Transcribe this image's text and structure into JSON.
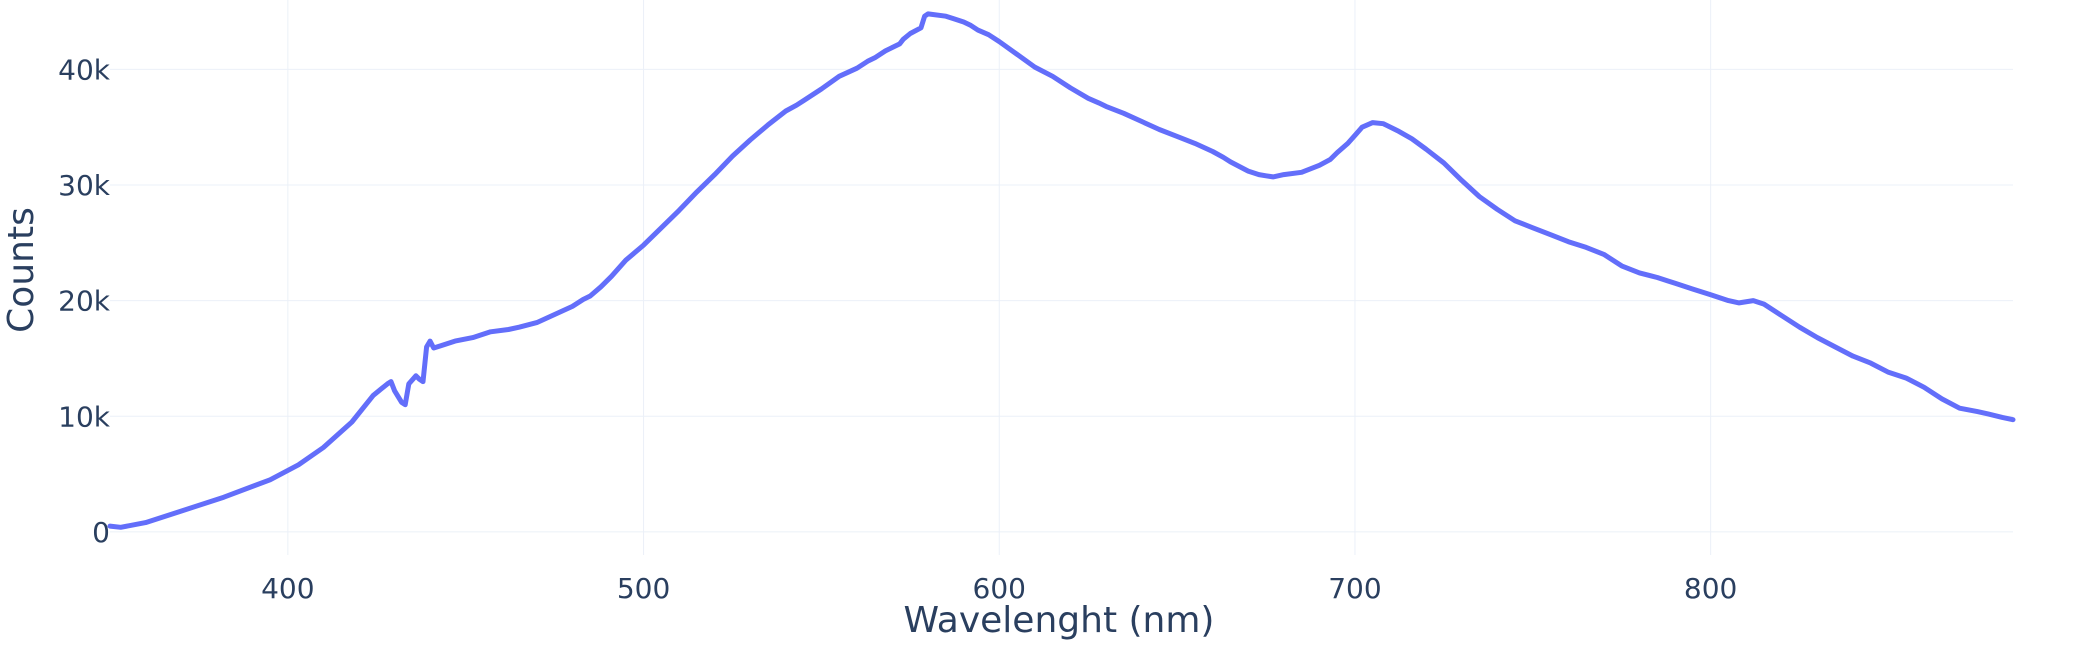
{
  "chart_data": {
    "type": "line",
    "xlabel": "Wavelenght (nm)",
    "ylabel": "Counts",
    "xlim": [
      350,
      885
    ],
    "ylim": [
      -2000,
      46000
    ],
    "xticks": [
      400,
      500,
      600,
      700,
      800
    ],
    "xtick_labels": [
      "400",
      "500",
      "600",
      "700",
      "800"
    ],
    "yticks": [
      0,
      10000,
      20000,
      30000,
      40000
    ],
    "ytick_labels": [
      "0",
      "10k",
      "20k",
      "30k",
      "40k"
    ],
    "grid": true,
    "legend": "none",
    "line_color": "#636efa",
    "series": [
      {
        "x": [
          350,
          353,
          360,
          370,
          382,
          395,
          403,
          410,
          418,
          424,
          428,
          429,
          430,
          432,
          433,
          434,
          436,
          437,
          438,
          439,
          440,
          441,
          443,
          447,
          452,
          457,
          462,
          465,
          470,
          475,
          480,
          483,
          485,
          488,
          491,
          495,
          500,
          505,
          510,
          515,
          520,
          525,
          530,
          535,
          540,
          543,
          545,
          550,
          555,
          560,
          563,
          565,
          568,
          570,
          572,
          573,
          575,
          578,
          579,
          580,
          585,
          587,
          590,
          592,
          594,
          597,
          600,
          605,
          610,
          615,
          620,
          625,
          628,
          630,
          635,
          640,
          645,
          650,
          655,
          660,
          663,
          665,
          670,
          673,
          675,
          677,
          680,
          685,
          690,
          693,
          695,
          698,
          700,
          702,
          705,
          708,
          712,
          716,
          720,
          725,
          730,
          735,
          740,
          745,
          750,
          755,
          760,
          765,
          770,
          775,
          780,
          785,
          788,
          790,
          795,
          800,
          805,
          808,
          812,
          815,
          820,
          825,
          830,
          835,
          840,
          845,
          850,
          855,
          860,
          865,
          870,
          875,
          878,
          882,
          885
        ],
        "y": [
          500,
          400,
          800,
          1800,
          3000,
          4500,
          5800,
          7300,
          9500,
          11800,
          12800,
          13000,
          12200,
          11200,
          11000,
          12800,
          13500,
          13200,
          13000,
          16000,
          16500,
          15900,
          16100,
          16500,
          16800,
          17300,
          17500,
          17700,
          18100,
          18800,
          19500,
          20100,
          20400,
          21200,
          22100,
          23500,
          24800,
          26300,
          27800,
          29400,
          30900,
          32500,
          33900,
          35200,
          36400,
          36900,
          37300,
          38300,
          39400,
          40100,
          40700,
          41000,
          41600,
          41900,
          42200,
          42600,
          43100,
          43600,
          44600,
          44800,
          44600,
          44400,
          44100,
          43800,
          43400,
          43000,
          42400,
          41300,
          40200,
          39400,
          38400,
          37500,
          37100,
          36800,
          36200,
          35500,
          34800,
          34200,
          33600,
          32900,
          32400,
          32000,
          31200,
          30900,
          30800,
          30700,
          30900,
          31100,
          31700,
          32200,
          32800,
          33600,
          34300,
          35000,
          35400,
          35300,
          34700,
          34000,
          33100,
          31900,
          30400,
          29000,
          27900,
          26900,
          26300,
          25700,
          25100,
          24600,
          24000,
          23000,
          22400,
          22000,
          21700,
          21500,
          21000,
          20500,
          20000,
          19800,
          20000,
          19700,
          18700,
          17700,
          16800,
          16000,
          15200,
          14600,
          13800,
          13300,
          12500,
          11500,
          10700,
          10400,
          10200,
          9900,
          9700
        ]
      }
    ]
  }
}
